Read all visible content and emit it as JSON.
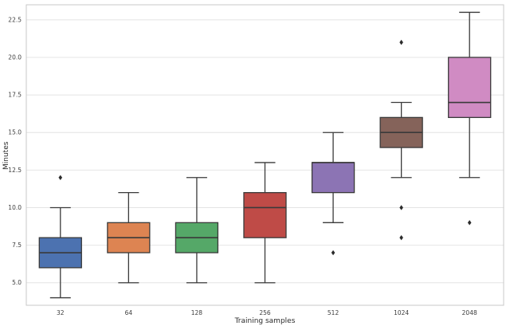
{
  "figure": {
    "background": "#ffffff"
  },
  "chart_data": {
    "type": "boxplot",
    "title": "",
    "xlabel": "Training samples",
    "ylabel": "Minutes",
    "categories": [
      "32",
      "64",
      "128",
      "256",
      "512",
      "1024",
      "2048"
    ],
    "ylim": [
      3.5,
      23.5
    ],
    "yticks": [
      5.0,
      7.5,
      10.0,
      12.5,
      15.0,
      17.5,
      20.0,
      22.5
    ],
    "ytick_labels": [
      "5.0",
      "7.5",
      "10.0",
      "12.5",
      "15.0",
      "17.5",
      "20.0",
      "22.5"
    ],
    "grid": true,
    "legend": "none",
    "series": [
      {
        "category": "32",
        "whisker_low": 4,
        "q1": 6,
        "median": 7,
        "q3": 8,
        "whisker_high": 10,
        "outliers": [
          12
        ],
        "color": "#4C72B0"
      },
      {
        "category": "64",
        "whisker_low": 5,
        "q1": 7,
        "median": 8,
        "q3": 9,
        "whisker_high": 11,
        "outliers": [],
        "color": "#DD8452"
      },
      {
        "category": "128",
        "whisker_low": 5,
        "q1": 7,
        "median": 8,
        "q3": 9,
        "whisker_high": 12,
        "outliers": [],
        "color": "#55A868"
      },
      {
        "category": "256",
        "whisker_low": 5,
        "q1": 8,
        "median": 10,
        "q3": 11,
        "whisker_high": 13,
        "outliers": [],
        "color": "#BF4B47"
      },
      {
        "category": "512",
        "whisker_low": 9,
        "q1": 11,
        "median": 13,
        "q3": 13,
        "whisker_high": 15,
        "outliers": [
          7
        ],
        "color": "#8C74B4"
      },
      {
        "category": "1024",
        "whisker_low": 12,
        "q1": 14,
        "median": 15,
        "q3": 16,
        "whisker_high": 17,
        "outliers": [
          21,
          10,
          8
        ],
        "color": "#85635A"
      },
      {
        "category": "2048",
        "whisker_low": 12,
        "q1": 16,
        "median": 17,
        "q3": 20,
        "whisker_high": 23,
        "outliers": [
          9
        ],
        "color": "#D08BC3"
      }
    ],
    "styles": {
      "box_stroke": "#3a3a3a",
      "median_color": "#3a3a3a",
      "grid_color": "#e4e4e4",
      "spine_color": "#c8c8c8",
      "flier_color": "#2b2b2b",
      "tick_label_color": "#3d3d3d",
      "axis_label_color": "#2b2b2b"
    }
  }
}
